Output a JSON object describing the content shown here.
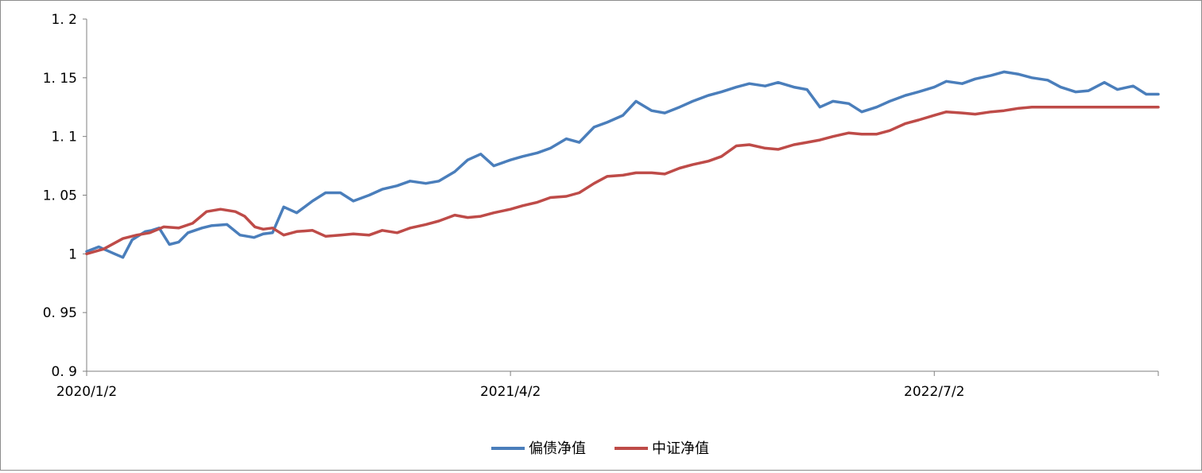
{
  "chart_data": {
    "type": "line",
    "title": "",
    "xlabel": "",
    "ylabel": "",
    "ylim": [
      0.9,
      1.2
    ],
    "yticks": [
      "1. 2",
      "1. 15",
      "1. 1",
      "1. 05",
      "1",
      "0. 95",
      "0. 9"
    ],
    "ytick_values": [
      1.2,
      1.15,
      1.1,
      1.05,
      1.0,
      0.95,
      0.9
    ],
    "xticks": [
      "2020/1/2",
      "2021/4/2",
      "2022/7/2"
    ],
    "xlim": [
      "2020/1/2",
      "2023/2/28"
    ],
    "grid": false,
    "legend_position": "bottom",
    "series": [
      {
        "name": "偏债净值",
        "color": "#4a7ebb",
        "x": [
          "2020/1/2",
          "2020/1/15",
          "2020/2/1",
          "2020/2/10",
          "2020/2/20",
          "2020/3/5",
          "2020/3/12",
          "2020/3/20",
          "2020/3/31",
          "2020/4/10",
          "2020/4/20",
          "2020/5/5",
          "2020/5/15",
          "2020/6/1",
          "2020/6/15",
          "2020/6/30",
          "2020/7/10",
          "2020/7/20",
          "2020/8/1",
          "2020/8/15",
          "2020/9/1",
          "2020/9/15",
          "2020/10/1",
          "2020/10/15",
          "2020/11/1",
          "2020/11/15",
          "2020/12/1",
          "2020/12/15",
          "2021/1/1",
          "2021/1/15",
          "2021/2/1",
          "2021/2/15",
          "2021/3/1",
          "2021/3/15",
          "2021/4/2",
          "2021/4/15",
          "2021/5/1",
          "2021/5/15",
          "2021/6/1",
          "2021/6/15",
          "2021/7/1",
          "2021/7/15",
          "2021/8/1",
          "2021/8/15",
          "2021/9/1",
          "2021/9/15",
          "2021/10/1",
          "2021/10/15",
          "2021/11/1",
          "2021/11/15",
          "2021/12/1",
          "2021/12/15",
          "2022/1/1",
          "2022/1/15",
          "2022/2/1",
          "2022/2/15",
          "2022/3/1",
          "2022/3/15",
          "2022/4/1",
          "2022/4/15",
          "2022/5/1",
          "2022/5/15",
          "2022/6/1",
          "2022/6/15",
          "2022/7/2",
          "2022/7/15",
          "2022/8/1",
          "2022/8/15",
          "2022/9/1",
          "2022/9/15",
          "2022/10/1",
          "2022/10/15",
          "2022/11/1",
          "2022/11/15",
          "2022/12/1",
          "2022/12/15",
          "2023/1/1",
          "2023/1/15",
          "2023/2/1",
          "2023/2/15",
          "2023/2/28"
        ],
        "values": [
          1.002,
          1.006,
          1.0,
          0.997,
          1.012,
          1.019,
          1.02,
          1.022,
          1.008,
          1.01,
          1.018,
          1.022,
          1.024,
          1.025,
          1.016,
          1.014,
          1.017,
          1.018,
          1.04,
          1.035,
          1.045,
          1.052,
          1.052,
          1.045,
          1.05,
          1.055,
          1.058,
          1.062,
          1.06,
          1.062,
          1.07,
          1.08,
          1.085,
          1.075,
          1.08,
          1.083,
          1.086,
          1.09,
          1.098,
          1.095,
          1.108,
          1.112,
          1.118,
          1.13,
          1.122,
          1.12,
          1.125,
          1.13,
          1.135,
          1.138,
          1.142,
          1.145,
          1.143,
          1.146,
          1.142,
          1.14,
          1.125,
          1.13,
          1.128,
          1.121,
          1.125,
          1.13,
          1.135,
          1.138,
          1.142,
          1.147,
          1.145,
          1.149,
          1.152,
          1.155,
          1.153,
          1.15,
          1.148,
          1.142,
          1.138,
          1.139,
          1.146,
          1.14,
          1.143,
          1.136,
          1.136
        ]
      },
      {
        "name": "中证净值",
        "color": "#be4b48",
        "x": [
          "2020/1/2",
          "2020/1/20",
          "2020/2/10",
          "2020/2/25",
          "2020/3/10",
          "2020/3/25",
          "2020/4/10",
          "2020/4/25",
          "2020/5/10",
          "2020/5/25",
          "2020/6/10",
          "2020/6/20",
          "2020/7/1",
          "2020/7/10",
          "2020/7/20",
          "2020/8/1",
          "2020/8/15",
          "2020/9/1",
          "2020/9/15",
          "2020/10/1",
          "2020/10/15",
          "2020/11/1",
          "2020/11/15",
          "2020/12/1",
          "2020/12/15",
          "2021/1/1",
          "2021/1/15",
          "2021/2/1",
          "2021/2/15",
          "2021/3/1",
          "2021/3/15",
          "2021/4/2",
          "2021/4/15",
          "2021/5/1",
          "2021/5/15",
          "2021/6/1",
          "2021/6/15",
          "2021/7/1",
          "2021/7/15",
          "2021/8/1",
          "2021/8/15",
          "2021/9/1",
          "2021/9/15",
          "2021/10/1",
          "2021/10/15",
          "2021/11/1",
          "2021/11/15",
          "2021/12/1",
          "2021/12/15",
          "2022/1/1",
          "2022/1/15",
          "2022/2/1",
          "2022/2/15",
          "2022/3/1",
          "2022/3/15",
          "2022/4/1",
          "2022/4/15",
          "2022/5/1",
          "2022/5/15",
          "2022/6/1",
          "2022/6/15",
          "2022/7/2",
          "2022/7/15",
          "2022/8/1",
          "2022/8/15",
          "2022/9/1",
          "2022/9/15",
          "2022/10/1",
          "2022/10/15",
          "2022/11/1",
          "2022/11/15",
          "2022/12/1",
          "2022/12/15",
          "2023/1/1",
          "2023/1/15",
          "2023/2/1",
          "2023/2/15",
          "2023/2/28"
        ],
        "values": [
          1.0,
          1.004,
          1.013,
          1.016,
          1.018,
          1.023,
          1.022,
          1.026,
          1.036,
          1.038,
          1.036,
          1.032,
          1.023,
          1.021,
          1.022,
          1.016,
          1.019,
          1.02,
          1.015,
          1.016,
          1.017,
          1.016,
          1.02,
          1.018,
          1.022,
          1.025,
          1.028,
          1.033,
          1.031,
          1.032,
          1.035,
          1.038,
          1.041,
          1.044,
          1.048,
          1.049,
          1.052,
          1.06,
          1.066,
          1.067,
          1.069,
          1.069,
          1.068,
          1.073,
          1.076,
          1.079,
          1.083,
          1.092,
          1.093,
          1.09,
          1.089,
          1.093,
          1.095,
          1.097,
          1.1,
          1.103,
          1.102,
          1.102,
          1.105,
          1.111,
          1.114,
          1.118,
          1.121,
          1.12,
          1.119,
          1.121,
          1.122,
          1.124,
          1.125,
          1.125,
          1.125,
          1.125,
          1.125,
          1.125,
          1.125,
          1.125,
          1.125,
          1.125
        ]
      }
    ]
  }
}
